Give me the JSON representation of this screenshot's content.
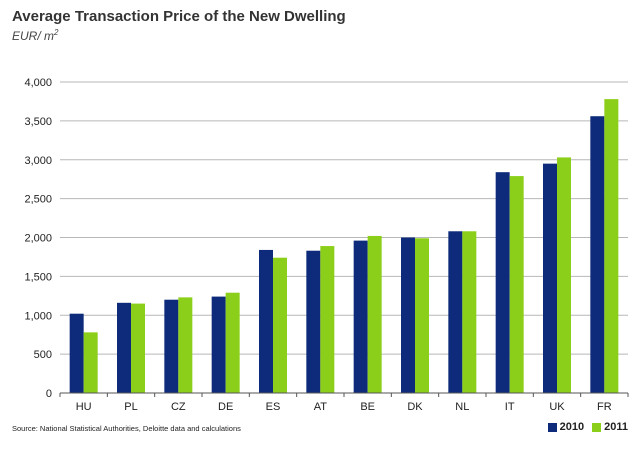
{
  "colors": {
    "s2010": "#0d2b7a",
    "s2011": "#8ccf1a",
    "grid": "#b7b7b7"
  },
  "chart_data": {
    "type": "bar",
    "title": "Average Transaction Price of the New Dwelling",
    "subtitle_main": "EUR/ m",
    "subtitle_sup": "2",
    "categories": [
      "HU",
      "PL",
      "CZ",
      "DE",
      "ES",
      "AT",
      "BE",
      "DK",
      "NL",
      "IT",
      "UK",
      "FR"
    ],
    "series": [
      {
        "name": "2010",
        "values": [
          1020,
          1160,
          1200,
          1240,
          1840,
          1830,
          1960,
          2000,
          2080,
          2840,
          2950,
          3560
        ]
      },
      {
        "name": "2011",
        "values": [
          780,
          1150,
          1230,
          1290,
          1740,
          1890,
          2020,
          1990,
          2080,
          2790,
          3030,
          3780
        ]
      }
    ],
    "ylim": [
      0,
      4000
    ],
    "yticks": [
      "0",
      "500",
      "1,000",
      "1,500",
      "2,000",
      "2,500",
      "3,000",
      "3,500",
      "4,000"
    ],
    "grid": true,
    "legend_position": "bottom-right",
    "source": "Source: National Statistical Authorities, Deloitte data and calculations"
  }
}
